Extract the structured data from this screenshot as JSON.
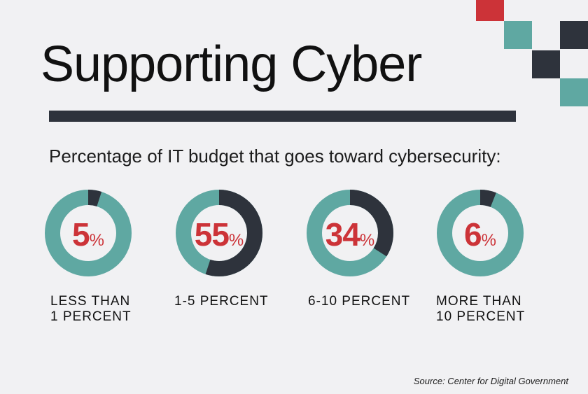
{
  "title": "Supporting Cyber",
  "subtitle": "Percentage of IT budget that goes toward cybersecurity:",
  "source": "Source: Center for Digital Government",
  "colors": {
    "background": "#f1f1f3",
    "accent_red": "#cc3338",
    "teal": "#5fa8a2",
    "dark": "#2e333c"
  },
  "chart_data": {
    "type": "pie",
    "variant": "donut",
    "title": "Percentage of IT budget that goes toward cybersecurity:",
    "unit": "%",
    "categories": [
      "LESS THAN\n1 PERCENT",
      "1-5 PERCENT",
      "6-10 PERCENT",
      "MORE THAN\n10 PERCENT"
    ],
    "values": [
      5,
      55,
      34,
      6
    ],
    "labels": [
      "5",
      "55",
      "34",
      "6"
    ],
    "source": "Source: Center for Digital Government"
  }
}
